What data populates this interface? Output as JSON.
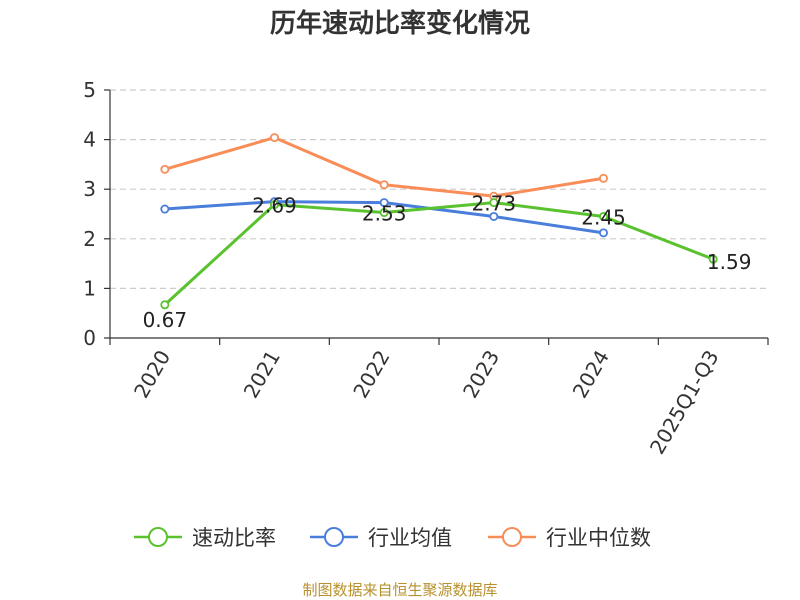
{
  "title": "历年速动比率变化情况",
  "source": "制图数据来自恒生聚源数据库",
  "colors": {
    "text": "#333333",
    "grid": "#cccccc",
    "axis": "#333333",
    "source": "#b8912e"
  },
  "chart_data": {
    "type": "line",
    "title": "历年速动比率变化情况",
    "categories": [
      "2020",
      "2021",
      "2022",
      "2023",
      "2024",
      "2025Q1-Q3"
    ],
    "ylim": [
      0,
      5
    ],
    "yticks": [
      "0",
      "1",
      "2",
      "3",
      "4",
      "5"
    ],
    "grid": true,
    "legend_position": "bottom",
    "series": [
      {
        "name": "速动比率",
        "color": "#5ac12f",
        "values": [
          0.67,
          2.69,
          2.53,
          2.73,
          2.45,
          1.59
        ],
        "labels": [
          "0.67",
          "2.69",
          "2.53",
          "2.73",
          "2.45",
          "1.59"
        ]
      },
      {
        "name": "行业均值",
        "color": "#4a7edb",
        "values": [
          2.6,
          2.75,
          2.73,
          2.45,
          2.12,
          null
        ]
      },
      {
        "name": "行业中位数",
        "color": "#f98d58",
        "values": [
          3.4,
          4.04,
          3.09,
          2.86,
          3.22,
          null
        ]
      }
    ]
  }
}
